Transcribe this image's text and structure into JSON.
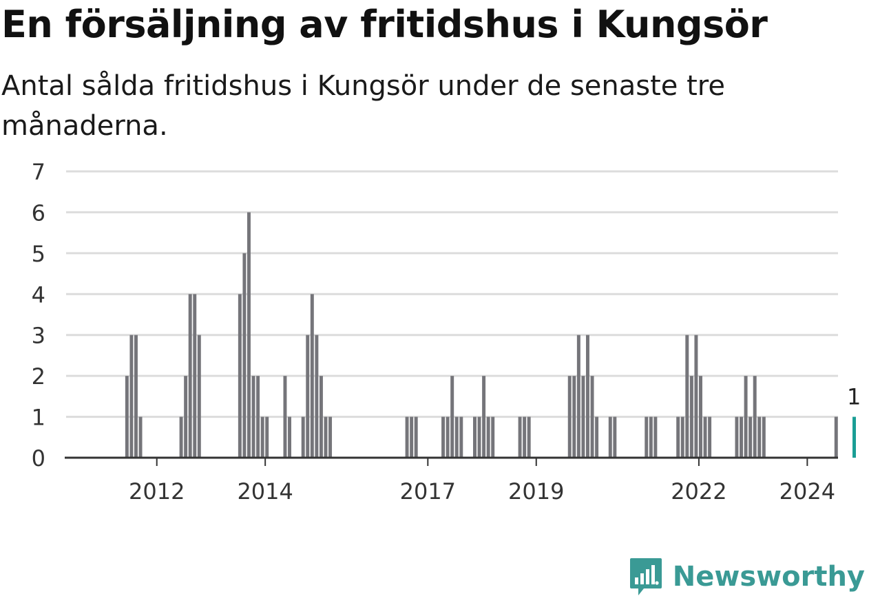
{
  "header": {
    "title": "En försäljning av fritidshus i Kungsör",
    "subtitle": "Antal sålda fritidshus i Kungsör under de senaste tre månaderna."
  },
  "brand": {
    "name": "Newsworthy",
    "icon": "chart-speech-bubble-icon",
    "color": "#3a9a95"
  },
  "chart_data": {
    "type": "bar",
    "x_unit": "quarter",
    "ylim": [
      0,
      7
    ],
    "yticks": [
      0,
      1,
      2,
      3,
      4,
      5,
      6,
      7
    ],
    "grid": true,
    "xtick_labels": [
      "2012",
      "2014",
      "2017",
      "2019",
      "2022",
      "2024"
    ],
    "bar_color": "#75757a",
    "highlight_color": "#1a9e95",
    "highlight_label": "1",
    "series": [
      {
        "x": [
          "2011-01",
          "2011-04",
          "2011-07",
          "2011-10",
          "2012-01",
          "2012-04",
          "2012-07",
          "2012-10",
          "2013-01",
          "2013-04",
          "2013-07",
          "2013-10",
          "2014-01",
          "2014-04",
          "2014-07",
          "2014-10",
          "2015-01",
          "2015-04",
          "2015-07",
          "2015-10",
          "2016-01",
          "2016-04",
          "2016-07",
          "2016-10",
          "2017-01",
          "2017-04",
          "2017-07",
          "2017-10",
          "2018-01",
          "2018-04",
          "2018-07",
          "2018-10",
          "2019-01",
          "2019-04",
          "2019-07",
          "2019-10",
          "2020-01",
          "2020-04",
          "2020-07",
          "2020-10",
          "2021-01",
          "2021-04",
          "2021-07",
          "2021-10",
          "2022-01",
          "2022-04",
          "2022-07",
          "2022-10",
          "2023-01",
          "2023-04",
          "2023-07",
          "2023-10",
          "2024-01",
          "2024-04",
          "2024-07",
          "2024-10"
        ],
        "values": [
          0,
          0,
          0,
          0,
          0,
          0,
          0,
          0,
          0,
          0,
          0,
          0,
          0,
          0,
          0,
          0,
          0,
          0,
          0,
          0,
          0,
          0,
          0,
          0,
          0,
          0,
          0,
          0,
          0,
          0,
          0,
          0,
          0,
          0,
          0,
          0,
          0,
          0,
          0,
          0,
          0,
          0,
          0,
          0,
          0,
          0,
          0,
          0,
          0,
          0,
          0,
          0,
          0,
          0,
          0,
          0
        ]
      }
    ],
    "monthly": {
      "start": "2011-01",
      "values": [
        0,
        0,
        0,
        0,
        0,
        0,
        0,
        0,
        0,
        0,
        0,
        0,
        0,
        2,
        3,
        3,
        1,
        0,
        0,
        0,
        0,
        0,
        0,
        0,
        0,
        1,
        2,
        4,
        4,
        3,
        0,
        0,
        0,
        0,
        0,
        0,
        0,
        0,
        4,
        5,
        6,
        2,
        2,
        1,
        1,
        0,
        0,
        0,
        2,
        1,
        0,
        0,
        1,
        3,
        4,
        3,
        2,
        1,
        1,
        0,
        0,
        0,
        0,
        0,
        0,
        0,
        0,
        0,
        0,
        0,
        0,
        0,
        0,
        0,
        0,
        1,
        1,
        1,
        0,
        0,
        0,
        0,
        0,
        1,
        1,
        2,
        1,
        1,
        0,
        0,
        1,
        1,
        2,
        1,
        1,
        0,
        0,
        0,
        0,
        0,
        1,
        1,
        1,
        0,
        0,
        0,
        0,
        0,
        0,
        0,
        0,
        2,
        2,
        3,
        2,
        3,
        2,
        1,
        0,
        0,
        1,
        1,
        0,
        0,
        0,
        0,
        0,
        0,
        1,
        1,
        1,
        0,
        0,
        0,
        0,
        1,
        1,
        3,
        2,
        3,
        2,
        1,
        1,
        0,
        0,
        0,
        0,
        0,
        1,
        1,
        2,
        1,
        2,
        1,
        1,
        0,
        0,
        0,
        0,
        0,
        0,
        0,
        0,
        0,
        0,
        0,
        0,
        0,
        0,
        0,
        1,
        0,
        0,
        0,
        1
      ]
    }
  }
}
